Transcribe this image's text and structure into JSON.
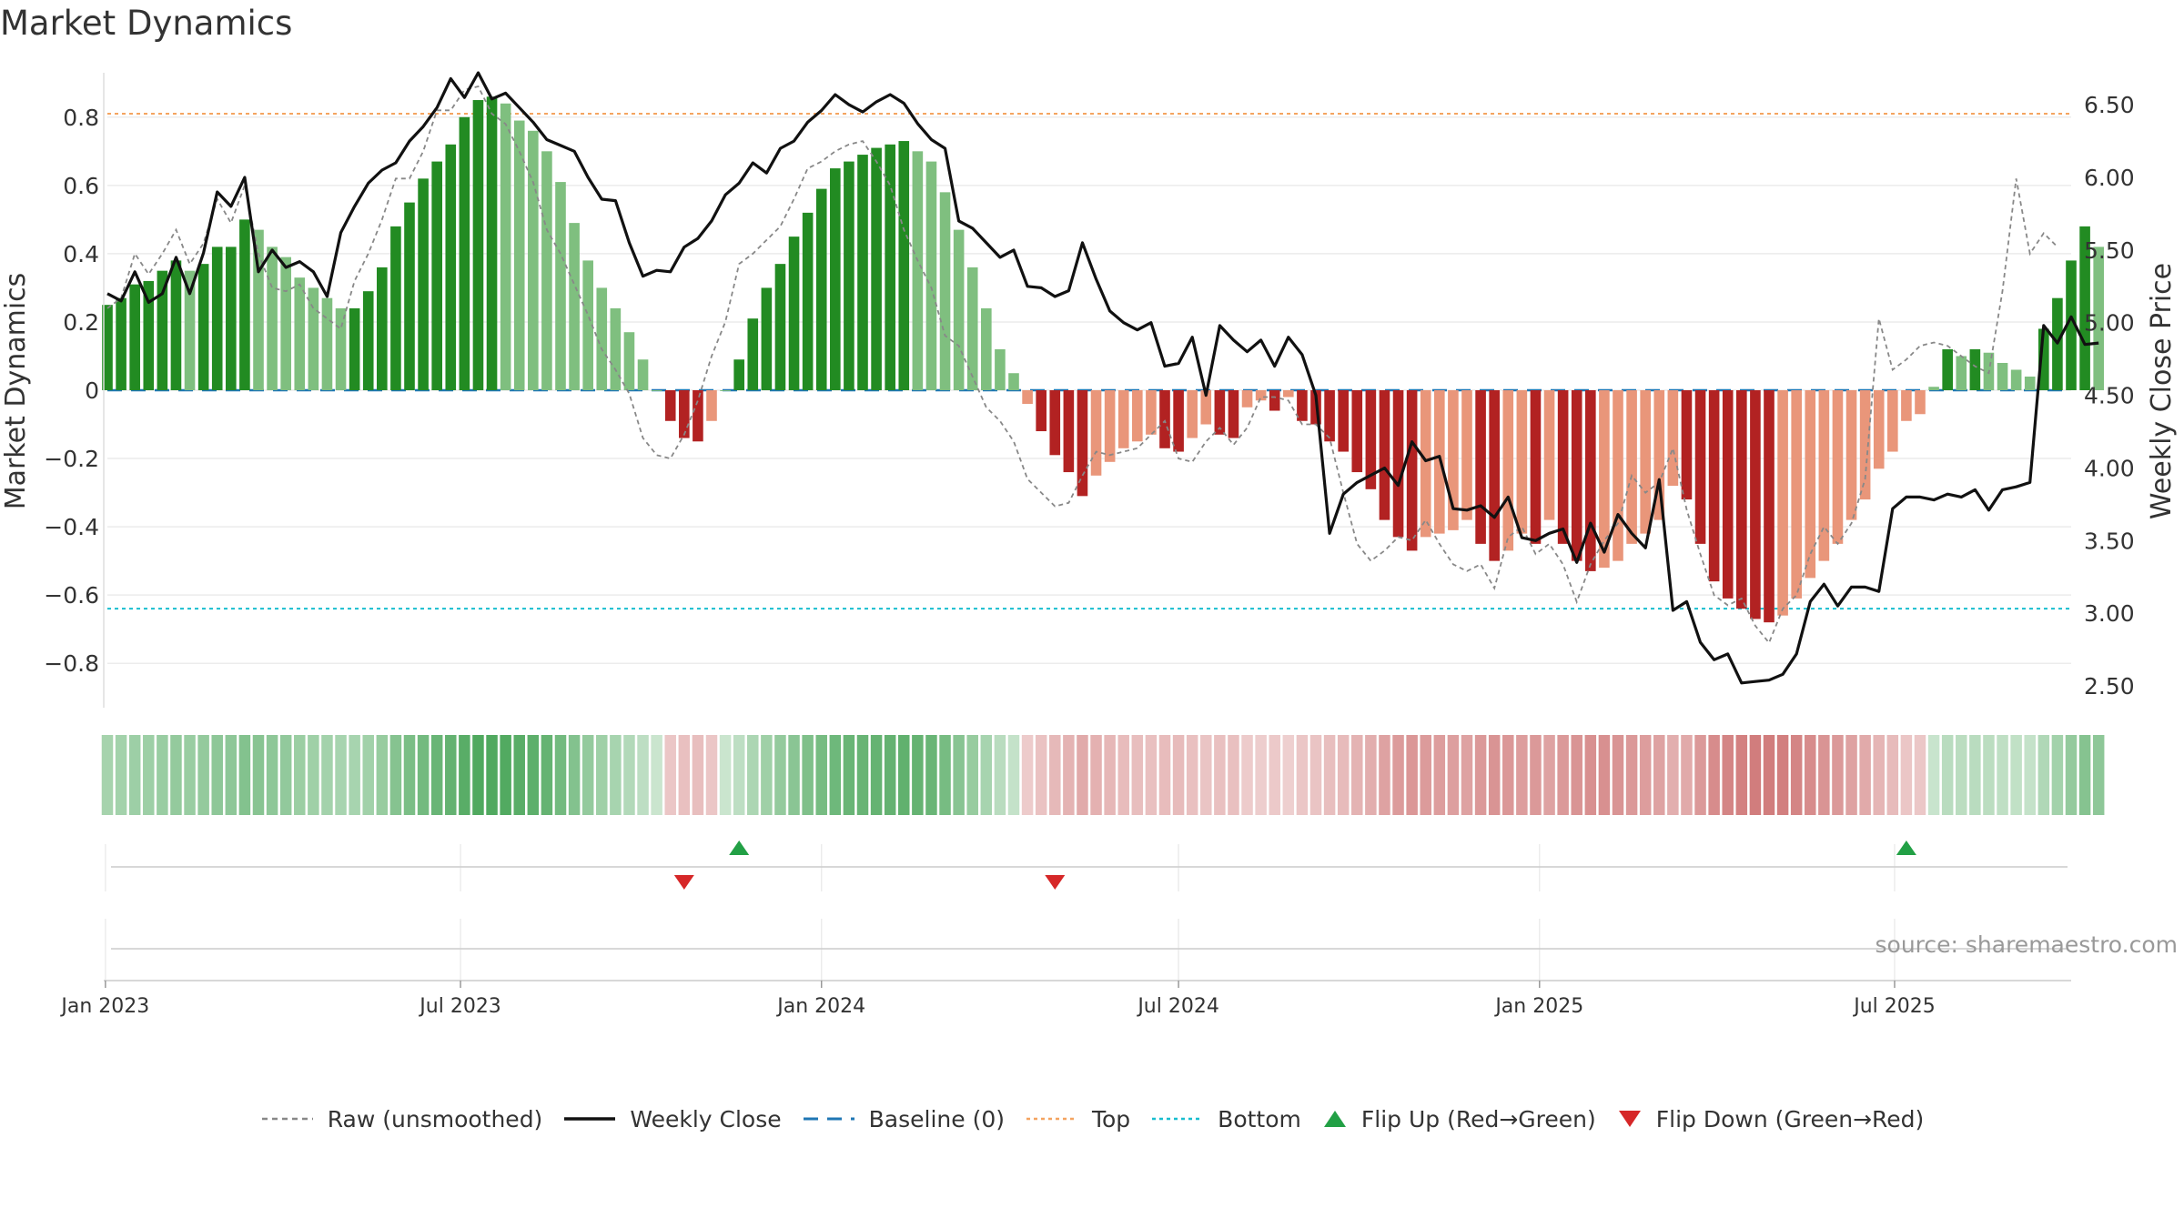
{
  "title": "Market Dynamics",
  "watermark": "source: sharemaestro.com",
  "colors": {
    "green_strong": "#228B22",
    "green_light": "#7fbf7f",
    "red_strong": "#b22222",
    "red_light": "#e9967a",
    "close_line": "#111111",
    "raw_line": "#888888",
    "baseline": "#1f77b4",
    "top_line": "#f4a460",
    "bottom_line": "#17becf",
    "flip_up": "#22a045",
    "flip_down": "#d62728"
  },
  "legend": [
    {
      "label": "Raw (unsmoothed)",
      "icon": "dashed-gray-line"
    },
    {
      "label": "Weekly Close",
      "icon": "solid-black-line"
    },
    {
      "label": "Baseline (0)",
      "icon": "dashed-blue-line"
    },
    {
      "label": "Top",
      "icon": "dotted-orange-line"
    },
    {
      "label": "Bottom",
      "icon": "dotted-cyan-line"
    },
    {
      "label": "Flip Up (Red→Green)",
      "icon": "green-triangle-up"
    },
    {
      "label": "Flip Down (Green→Red)",
      "icon": "red-triangle-down"
    }
  ],
  "chart_data": {
    "type": "bar",
    "ylabel": "Market Dynamics",
    "y2label": "Weekly Close Price",
    "ylim": [
      -0.93,
      0.93
    ],
    "y2lim": [
      2.35,
      6.72
    ],
    "yticks": [
      "0.8",
      "0.6",
      "0.4",
      "0.2",
      "0",
      "−0.2",
      "−0.4",
      "−0.6",
      "−0.8"
    ],
    "y2ticks": [
      "6.50",
      "6.00",
      "5.50",
      "5.00",
      "4.50",
      "4.00",
      "3.50",
      "3.00",
      "2.50"
    ],
    "xticks": [
      "Jan 2023",
      "Jul 2023",
      "Jan 2024",
      "Jul 2024",
      "Jan 2025",
      "Jul 2025"
    ],
    "x_start": "2023-01-02",
    "x_end": "2025-09-29",
    "top_level": 0.81,
    "bottom_level": -0.64,
    "baseline_level": 0,
    "market_dynamics": [
      0.25,
      0.27,
      0.31,
      0.32,
      0.35,
      0.38,
      0.35,
      0.37,
      0.42,
      0.42,
      0.5,
      0.47,
      0.42,
      0.39,
      0.33,
      0.3,
      0.27,
      0.24,
      0.24,
      0.29,
      0.36,
      0.48,
      0.55,
      0.62,
      0.67,
      0.72,
      0.8,
      0.85,
      0.86,
      0.84,
      0.79,
      0.76,
      0.7,
      0.61,
      0.49,
      0.38,
      0.3,
      0.24,
      0.17,
      0.09,
      0.0,
      -0.09,
      -0.14,
      -0.15,
      -0.09,
      0.0,
      0.09,
      0.21,
      0.3,
      0.37,
      0.45,
      0.52,
      0.59,
      0.65,
      0.67,
      0.69,
      0.71,
      0.72,
      0.73,
      0.7,
      0.67,
      0.58,
      0.47,
      0.36,
      0.24,
      0.12,
      0.05,
      -0.04,
      -0.12,
      -0.19,
      -0.24,
      -0.31,
      -0.25,
      -0.21,
      -0.17,
      -0.15,
      -0.13,
      -0.17,
      -0.18,
      -0.14,
      -0.1,
      -0.13,
      -0.14,
      -0.05,
      -0.03,
      -0.06,
      -0.02,
      -0.09,
      -0.1,
      -0.15,
      -0.18,
      -0.24,
      -0.29,
      -0.38,
      -0.43,
      -0.47,
      -0.43,
      -0.42,
      -0.41,
      -0.38,
      -0.45,
      -0.5,
      -0.47,
      -0.42,
      -0.45,
      -0.38,
      -0.45,
      -0.5,
      -0.53,
      -0.52,
      -0.5,
      -0.45,
      -0.42,
      -0.38,
      -0.28,
      -0.32,
      -0.45,
      -0.56,
      -0.61,
      -0.64,
      -0.67,
      -0.68,
      -0.66,
      -0.61,
      -0.55,
      -0.5,
      -0.45,
      -0.38,
      -0.32,
      -0.23,
      -0.18,
      -0.09,
      -0.07,
      0.01,
      0.12,
      0.1,
      0.12,
      0.11,
      0.08,
      0.06,
      0.04,
      0.18,
      0.27,
      0.38,
      0.48,
      0.42
    ],
    "raw": [
      0.24,
      0.27,
      0.4,
      0.34,
      0.4,
      0.47,
      0.37,
      0.43,
      0.56,
      0.49,
      0.6,
      0.4,
      0.3,
      0.29,
      0.31,
      0.24,
      0.21,
      0.18,
      0.32,
      0.4,
      0.5,
      0.62,
      0.62,
      0.7,
      0.82,
      0.82,
      0.88,
      0.89,
      0.81,
      0.78,
      0.7,
      0.61,
      0.47,
      0.4,
      0.31,
      0.22,
      0.12,
      0.06,
      -0.01,
      -0.14,
      -0.19,
      -0.2,
      -0.13,
      -0.03,
      0.1,
      0.2,
      0.37,
      0.4,
      0.44,
      0.48,
      0.56,
      0.65,
      0.67,
      0.7,
      0.72,
      0.73,
      0.67,
      0.6,
      0.47,
      0.38,
      0.3,
      0.16,
      0.13,
      0.04,
      -0.05,
      -0.09,
      -0.15,
      -0.26,
      -0.3,
      -0.34,
      -0.33,
      -0.25,
      -0.18,
      -0.19,
      -0.18,
      -0.17,
      -0.13,
      -0.09,
      -0.2,
      -0.21,
      -0.15,
      -0.11,
      -0.16,
      -0.11,
      -0.02,
      -0.02,
      -0.03,
      -0.1,
      -0.1,
      -0.14,
      -0.3,
      -0.45,
      -0.5,
      -0.47,
      -0.43,
      -0.44,
      -0.38,
      -0.45,
      -0.51,
      -0.53,
      -0.51,
      -0.58,
      -0.43,
      -0.4,
      -0.48,
      -0.45,
      -0.51,
      -0.62,
      -0.51,
      -0.44,
      -0.39,
      -0.25,
      -0.3,
      -0.27,
      -0.17,
      -0.35,
      -0.48,
      -0.6,
      -0.63,
      -0.61,
      -0.69,
      -0.74,
      -0.64,
      -0.6,
      -0.48,
      -0.4,
      -0.45,
      -0.39,
      -0.26,
      0.21,
      0.06,
      0.09,
      0.13,
      0.14,
      0.13,
      0.1,
      0.07,
      0.05,
      0.29,
      0.62,
      0.4,
      0.46,
      0.42
    ],
    "weekly_close": [
      5.2,
      5.15,
      5.35,
      5.14,
      5.2,
      5.45,
      5.2,
      5.48,
      5.9,
      5.8,
      6.0,
      5.35,
      5.5,
      5.38,
      5.42,
      5.35,
      5.18,
      5.62,
      5.8,
      5.96,
      6.05,
      6.1,
      6.25,
      6.35,
      6.48,
      6.68,
      6.55,
      6.72,
      6.54,
      6.58,
      6.48,
      6.38,
      6.26,
      6.22,
      6.18,
      6.0,
      5.85,
      5.84,
      5.55,
      5.32,
      5.36,
      5.35,
      5.52,
      5.58,
      5.7,
      5.88,
      5.96,
      6.1,
      6.03,
      6.2,
      6.25,
      6.38,
      6.46,
      6.57,
      6.5,
      6.45,
      6.52,
      6.57,
      6.51,
      6.37,
      6.26,
      6.2,
      5.7,
      5.65,
      5.55,
      5.45,
      5.5,
      5.25,
      5.24,
      5.18,
      5.22,
      5.55,
      5.3,
      5.08,
      5.0,
      4.95,
      5.0,
      4.7,
      4.72,
      4.9,
      4.5,
      4.98,
      4.88,
      4.8,
      4.88,
      4.7,
      4.9,
      4.78,
      4.5,
      3.55,
      3.82,
      3.9,
      3.95,
      4.0,
      3.88,
      4.18,
      4.05,
      4.08,
      3.72,
      3.71,
      3.74,
      3.66,
      3.8,
      3.52,
      3.5,
      3.55,
      3.58,
      3.35,
      3.62,
      3.42,
      3.68,
      3.55,
      3.45,
      3.92,
      3.02,
      3.08,
      2.8,
      2.68,
      2.72,
      2.52,
      2.53,
      2.54,
      2.58,
      2.72,
      3.08,
      3.2,
      3.05,
      3.18,
      3.18,
      3.15,
      3.72,
      3.8,
      3.8,
      3.78,
      3.82,
      3.8,
      3.85,
      3.71,
      3.85,
      3.87,
      3.9,
      4.98,
      4.86,
      5.04,
      4.85,
      4.86
    ],
    "flip_up_dates": [
      "2023-11-20",
      "2025-07-07"
    ],
    "flip_down_dates": [
      "2023-10-23",
      "2024-04-29"
    ]
  }
}
